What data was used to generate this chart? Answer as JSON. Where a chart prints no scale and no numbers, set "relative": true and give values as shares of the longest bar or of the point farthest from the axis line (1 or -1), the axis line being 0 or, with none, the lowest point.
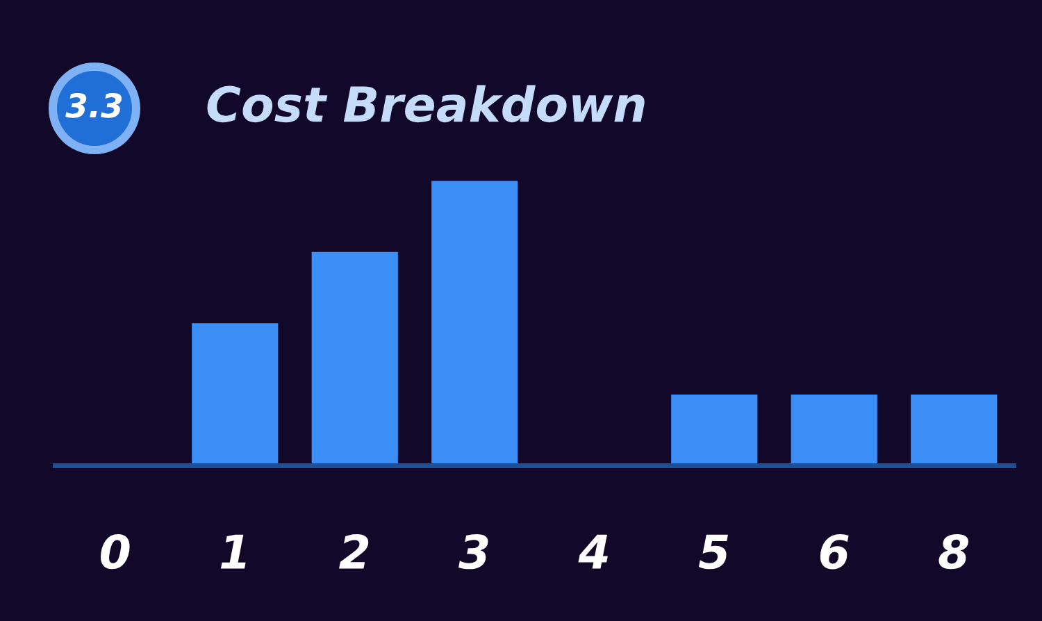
{
  "chart_data": {
    "type": "bar",
    "title": "Cost Breakdown",
    "relative": true,
    "annotations": [
      "3.3"
    ],
    "categories": [
      "0",
      "1",
      "2",
      "3",
      "4",
      "5",
      "6",
      "8"
    ],
    "values": [
      0,
      0.5,
      0.75,
      1,
      0,
      0.25,
      0.25,
      0.25
    ],
    "color": "#3a8ef6",
    "grid": false,
    "legend": false
  }
}
